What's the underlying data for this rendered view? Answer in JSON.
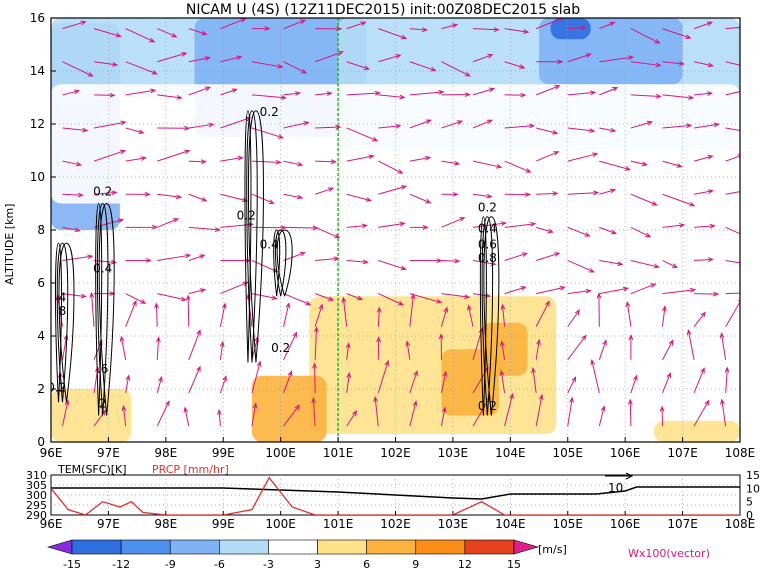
{
  "chart_data": {
    "type": "heatmap",
    "title": "NICAM U (4S) (12Z11DEC2015) init:00Z08DEC2015 slab",
    "main_panel": {
      "ylabel": "ALTITUDE [km]",
      "xlim": [
        96,
        108
      ],
      "ylim": [
        0,
        16
      ],
      "x_ticks": [
        "96E",
        "97E",
        "98E",
        "99E",
        "100E",
        "101E",
        "102E",
        "103E",
        "104E",
        "105E",
        "106E",
        "107E",
        "108E"
      ],
      "y_ticks": [
        "0",
        "2",
        "4",
        "6",
        "8",
        "10",
        "12",
        "14",
        "16"
      ],
      "grid": "dotted",
      "highlight_longitude": 101,
      "shading_levels": [
        -15,
        -12,
        -9,
        -6,
        -3,
        3,
        6,
        9,
        12,
        15
      ],
      "shading_colors": [
        "#8a2be2",
        "#2f6fe0",
        "#4f8fee",
        "#7fb1f5",
        "#b3dcf7",
        "#ffffff",
        "#fde28a",
        "#fcb23e",
        "#fb8e1a",
        "#e6421e",
        "#b4141c",
        "#e0208c"
      ],
      "shaded_regions": [
        {
          "x": [
            96.0,
            97.2
          ],
          "y": [
            8.0,
            15.8
          ],
          "value": -9
        },
        {
          "x": [
            96.0,
            101.0
          ],
          "y": [
            13.0,
            16.0
          ],
          "value": -6
        },
        {
          "x": [
            98.5,
            101.5
          ],
          "y": [
            11.5,
            16.0
          ],
          "value": -9
        },
        {
          "x": [
            101.0,
            108.0
          ],
          "y": [
            11.0,
            16.0
          ],
          "value": -6
        },
        {
          "x": [
            104.5,
            107.0
          ],
          "y": [
            13.5,
            16.0
          ],
          "value": -9
        },
        {
          "x": [
            104.7,
            105.4
          ],
          "y": [
            15.2,
            16.0
          ],
          "value": -15
        },
        {
          "x": [
            96.0,
            108.0
          ],
          "y": [
            9.0,
            13.5
          ],
          "value": -3
        },
        {
          "x": [
            100.5,
            104.8
          ],
          "y": [
            0.3,
            5.5
          ],
          "value": 3
        },
        {
          "x": [
            102.8,
            103.8
          ],
          "y": [
            1.0,
            3.5
          ],
          "value": 6
        },
        {
          "x": [
            103.5,
            104.3
          ],
          "y": [
            2.5,
            4.5
          ],
          "value": 6
        },
        {
          "x": [
            99.5,
            100.8
          ],
          "y": [
            0.0,
            2.5
          ],
          "value": 6
        },
        {
          "x": [
            96.0,
            97.4
          ],
          "y": [
            0.0,
            2.0
          ],
          "value": 3
        },
        {
          "x": [
            106.5,
            108.0
          ],
          "y": [
            0.0,
            0.8
          ],
          "value": 3
        }
      ],
      "contours": [
        {
          "label": "0.2",
          "x": 96.1,
          "y": 1.9
        },
        {
          "label": "4",
          "x": 96.2,
          "y": 5.3
        },
        {
          "label": "8",
          "x": 96.2,
          "y": 4.8
        },
        {
          "label": "0.2",
          "x": 96.9,
          "y": 9.3
        },
        {
          "label": "0.4",
          "x": 96.9,
          "y": 6.4
        },
        {
          "label": ".6",
          "x": 96.9,
          "y": 2.6
        },
        {
          "label": "2",
          "x": 96.9,
          "y": 1.3
        },
        {
          "label": "0.2",
          "x": 99.8,
          "y": 12.3
        },
        {
          "label": "0.2",
          "x": 99.4,
          "y": 8.4
        },
        {
          "label": "0.4",
          "x": 99.8,
          "y": 7.3
        },
        {
          "label": "0.2",
          "x": 100.0,
          "y": 3.4
        },
        {
          "label": "0.2",
          "x": 103.6,
          "y": 8.7
        },
        {
          "label": "0.4",
          "x": 103.6,
          "y": 7.9
        },
        {
          "label": "0.6",
          "x": 103.6,
          "y": 7.3
        },
        {
          "label": "0.8",
          "x": 103.6,
          "y": 6.8
        },
        {
          "label": "0.2",
          "x": 103.6,
          "y": 1.2
        }
      ],
      "vector_label": "Wx100(vector)"
    },
    "bottom_panel": {
      "series": [
        {
          "name": "TEM(SFC)[K]",
          "color": "#000000",
          "axis": "left",
          "ylim": [
            290,
            310
          ],
          "y_ticks": [
            "290",
            "295",
            "300",
            "305",
            "310"
          ],
          "x": [
            96,
            99,
            100,
            101,
            102,
            103,
            103.5,
            104,
            105,
            105.5,
            106,
            106.2,
            108
          ],
          "values": [
            303.5,
            303.5,
            302.5,
            301.5,
            300,
            298.5,
            298,
            300.5,
            300.5,
            300.5,
            302,
            304,
            304
          ]
        },
        {
          "name": "PRCP [mm/hr]",
          "color": "#e0302a",
          "axis": "right",
          "ylim": [
            0,
            15
          ],
          "y_ticks": [
            "0",
            "5",
            "10",
            "15"
          ],
          "x": [
            96,
            96.3,
            96.6,
            96.9,
            97.2,
            97.4,
            97.6,
            98,
            99,
            99.5,
            99.8,
            100.2,
            100.6,
            103,
            103.5,
            103.9,
            104.2,
            106,
            108
          ],
          "values": [
            10,
            2,
            0,
            5,
            3,
            5,
            1,
            0,
            0,
            2,
            14,
            3,
            0,
            0,
            5,
            0,
            0,
            0,
            0
          ]
        }
      ],
      "annotation": "10"
    },
    "colorbar": {
      "tick_labels": [
        "-15",
        "-12",
        "-9",
        "-6",
        "-3",
        "3",
        "6",
        "9",
        "12",
        "15"
      ],
      "unit": "[m/s]"
    }
  }
}
